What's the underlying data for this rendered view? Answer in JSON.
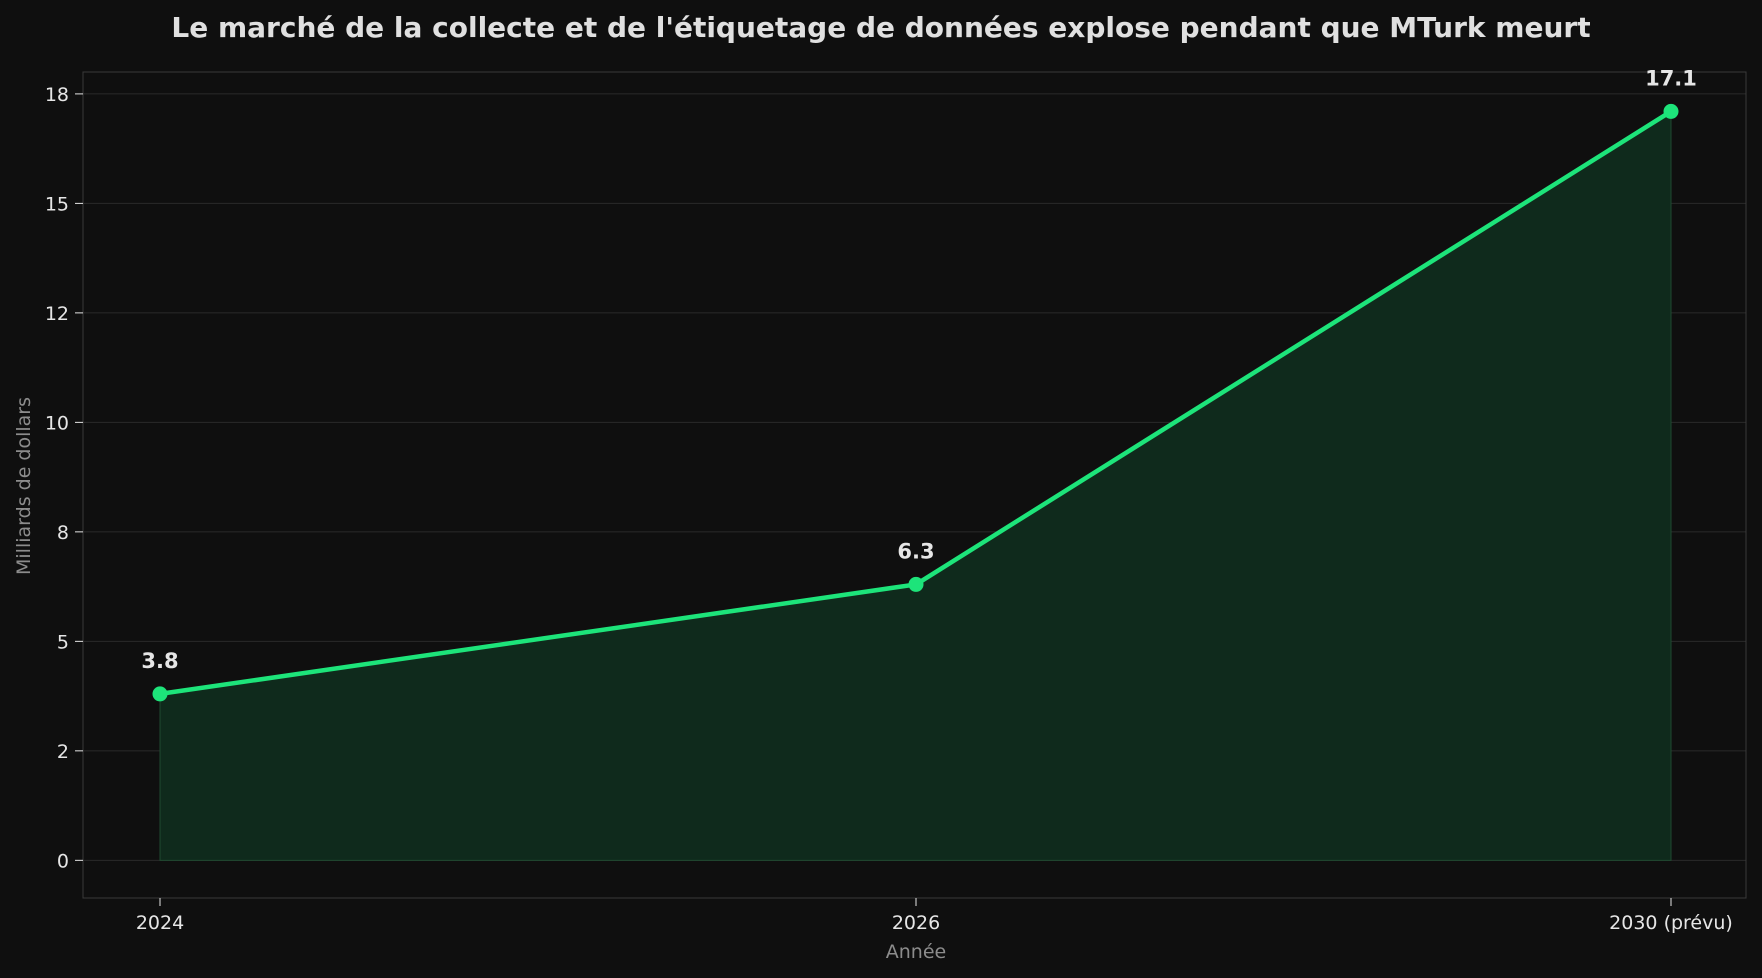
{
  "chart_data": {
    "type": "area",
    "title": "Le marché de la collecte et de l'étiquetage de données explose pendant que MTurk meurt",
    "xlabel": "Année",
    "ylabel": "Milliards de dollars",
    "categories": [
      "2024",
      "2026",
      "2030 (prévu)"
    ],
    "values": [
      3.8,
      6.3,
      17.1
    ],
    "data_labels": [
      "3.8",
      "6.3",
      "17.1"
    ],
    "ylim": [
      -0.86,
      18
    ],
    "yticks": [
      0,
      2,
      5,
      8,
      10,
      12,
      15,
      18
    ],
    "ytick_values": [
      0,
      2.5,
      5,
      7.5,
      10,
      12.5,
      15,
      17.5
    ],
    "grid": true,
    "legend": "none",
    "colors": {
      "line": "#1de47a",
      "fill": "#0f2a1c",
      "background": "#0f0f0f",
      "grid": "#2a2a2a",
      "frame": "#3a3a3a"
    }
  }
}
